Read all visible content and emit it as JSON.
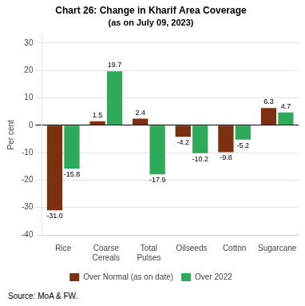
{
  "chart_data": {
    "type": "bar",
    "title": "Chart 26: Change in Kharif Area Coverage",
    "subtitle": "(as on July 09, 2023)",
    "y_label": "Per cent",
    "categories": [
      "Rice",
      "Coarse\nCereals",
      "Total\nPulses",
      "Oilseeds",
      "Cotton",
      "Sugarcane"
    ],
    "series": [
      {
        "name": "Over Normal (as on date)",
        "color": "#7B3010",
        "values": [
          -31.0,
          1.5,
          2.4,
          -4.2,
          -9.8,
          6.3
        ],
        "value_labels": [
          "-31.0",
          "1.5",
          "2.4",
          "-4.2",
          "-9.8",
          "6.3"
        ]
      },
      {
        "name": "Over 2022",
        "color": "#2EAA5A",
        "values": [
          -15.8,
          19.7,
          -17.9,
          -10.2,
          -5.2,
          4.7
        ],
        "value_labels": [
          "-15.8",
          "19.7",
          "-17.9",
          "-10.2",
          "-5.2",
          "4.7"
        ]
      }
    ],
    "ylim": [
      -40,
      33
    ],
    "yticks": [
      -40,
      -30,
      -20,
      -10,
      0,
      10,
      20,
      30
    ],
    "grid": true,
    "legend": "bottom",
    "data_labels": true,
    "annotation": "Source: MoA & FW."
  }
}
